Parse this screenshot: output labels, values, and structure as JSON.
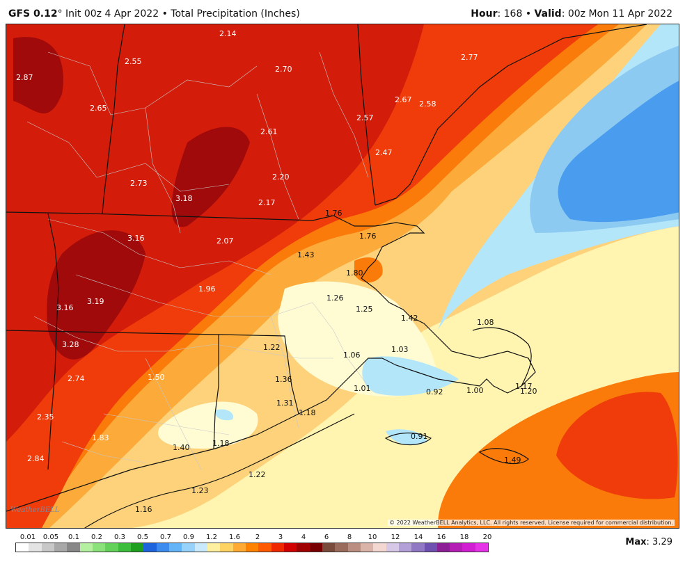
{
  "header": {
    "model": "GFS 0.12",
    "deg": "°",
    "init": "Init 00z 4 Apr 2022",
    "bullet": "•",
    "product": "Total Precipitation (Inches)",
    "hour_label": "Hour",
    "hour_value": ": 168",
    "valid_label": "Valid",
    "valid_value": ": 00z Mon 11 Apr 2022"
  },
  "colors": {
    "deep_red": "#a00a0a",
    "red": "#d41c0a",
    "red_orange": "#f03c0a",
    "orange": "#fa7a0a",
    "light_orange": "#fcaa3a",
    "gold": "#fdd27a",
    "pale_yellow": "#fff4b0",
    "cream": "#fffcd4",
    "light_blue": "#b4e6fa",
    "sky_blue": "#8ccaf2",
    "blue": "#4a9cee",
    "border": "#111111"
  },
  "labels": [
    {
      "t": "2.87"
    },
    {
      "t": "2.55"
    },
    {
      "t": "2.14"
    },
    {
      "t": "2.70"
    },
    {
      "t": "2.77"
    },
    {
      "t": "2.65"
    },
    {
      "t": "2.67"
    },
    {
      "t": "2.58"
    },
    {
      "t": "2.57"
    },
    {
      "t": "2.61"
    },
    {
      "t": "2.47"
    },
    {
      "t": "2.73"
    },
    {
      "t": "3.18"
    },
    {
      "t": "2.20"
    },
    {
      "t": "2.17"
    },
    {
      "t": "1.76"
    },
    {
      "t": "3.16"
    },
    {
      "t": "2.07"
    },
    {
      "t": "1.76"
    },
    {
      "t": "1.43"
    },
    {
      "t": "1.80"
    },
    {
      "t": "1.96"
    },
    {
      "t": "1.26"
    },
    {
      "t": "3.16"
    },
    {
      "t": "3.19"
    },
    {
      "t": "1.25"
    },
    {
      "t": "1.42"
    },
    {
      "t": "1.08"
    },
    {
      "t": "3.28"
    },
    {
      "t": "1.22"
    },
    {
      "t": "1.03"
    },
    {
      "t": "1.06"
    },
    {
      "t": "1.50"
    },
    {
      "t": "2.74"
    },
    {
      "t": "1.36"
    },
    {
      "t": "1.01"
    },
    {
      "t": "0.92"
    },
    {
      "t": "1.00"
    },
    {
      "t": "1.17"
    },
    {
      "t": "1.20"
    },
    {
      "t": "1.31"
    },
    {
      "t": "1.18"
    },
    {
      "t": "2.35"
    },
    {
      "t": "1.83"
    },
    {
      "t": "0.91"
    },
    {
      "t": "1.40"
    },
    {
      "t": "1.18"
    },
    {
      "t": "2.84"
    },
    {
      "t": "1.49"
    },
    {
      "t": "1.22"
    },
    {
      "t": "1.23"
    },
    {
      "t": "1.16"
    }
  ],
  "copyright": "© 2022 WeatherBELL Analytics, LLC. All rights reserved. License required for commercial distribution.",
  "logo_text": "WeatherBELL",
  "legend": {
    "ticks": [
      "0.01",
      "0.05",
      "0.1",
      "0.2",
      "0.3",
      "0.5",
      "0.7",
      "0.9",
      "1.2",
      "1.6",
      "2",
      "3",
      "4",
      "6",
      "8",
      "10",
      "12",
      "14",
      "16",
      "18",
      "20"
    ],
    "colors": [
      "#ffffff",
      "#e4e4e4",
      "#c8c8c8",
      "#a8a8a8",
      "#888888",
      "#b4f0a0",
      "#8ce27a",
      "#64d25a",
      "#3cbe3c",
      "#1ea01e",
      "#1e64dc",
      "#3c8cf0",
      "#64b4f8",
      "#96d2fa",
      "#c8eafc",
      "#fff0a0",
      "#ffd264",
      "#ffaa32",
      "#ff8200",
      "#ff5a00",
      "#f02800",
      "#d20000",
      "#a00000",
      "#780000",
      "#7a4a3a",
      "#9a6a5a",
      "#ba8e80",
      "#dab4a8",
      "#f2d8d0",
      "#d8c8e8",
      "#b4a0d8",
      "#9078c4",
      "#6e50b0",
      "#8c1e96",
      "#b41eb4",
      "#d21ed2",
      "#e632e6"
    ]
  },
  "max_label": "Max",
  "max_value": ": 3.29"
}
